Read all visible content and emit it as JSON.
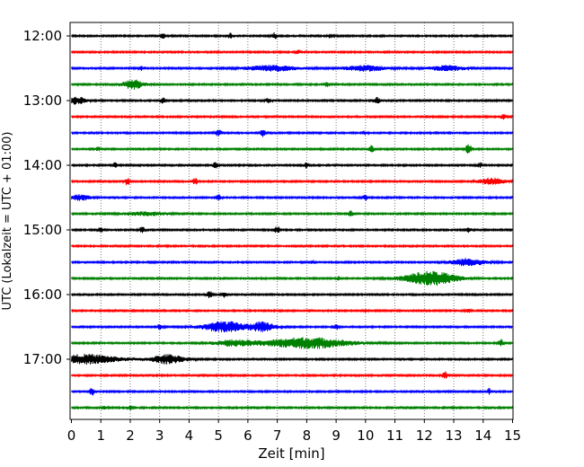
{
  "chart_data": {
    "type": "line",
    "xlabel": "Zeit  [min]",
    "ylabel": "UTC (Lokalzeit = UTC + 01:00)",
    "xlim": [
      0,
      15
    ],
    "x_ticks": [
      "0",
      "1",
      "2",
      "3",
      "4",
      "5",
      "6",
      "7",
      "8",
      "9",
      "10",
      "11",
      "12",
      "13",
      "14",
      "15"
    ],
    "y_ticks": [
      "12:00",
      "13:00",
      "14:00",
      "15:00",
      "16:00",
      "17:00"
    ],
    "grid": "vertical dotted lines at each minute",
    "row_minutes": 15,
    "colors_cycle": [
      "#000000",
      "#ff0000",
      "#0000ff",
      "#008000"
    ],
    "rows": [
      {
        "time": "12:00",
        "color": "#000000",
        "events": [
          {
            "t": 3.1,
            "a": 3
          },
          {
            "t": 5.4,
            "a": 3
          },
          {
            "t": 6.9,
            "a": 3.5
          },
          {
            "t": 8.8,
            "a": 2
          }
        ]
      },
      {
        "time": "12:15",
        "color": "#ff0000",
        "events": [
          {
            "t": 7.7,
            "a": 2
          }
        ]
      },
      {
        "time": "12:30",
        "color": "#0000ff",
        "events": [
          {
            "t": 2.4,
            "a": 2
          },
          {
            "t": 6.8,
            "a": 3,
            "w": 1.2
          },
          {
            "t": 10.0,
            "a": 3,
            "w": 1
          },
          {
            "t": 12.8,
            "a": 3,
            "w": 0.8
          }
        ]
      },
      {
        "time": "12:45",
        "color": "#008000",
        "events": [
          {
            "t": 2.1,
            "a": 5,
            "w": 0.5
          },
          {
            "t": 8.7,
            "a": 2.5
          }
        ]
      },
      {
        "time": "13:00",
        "color": "#000000",
        "events": [
          {
            "t": 0.2,
            "a": 4,
            "w": 0.4
          },
          {
            "t": 3.1,
            "a": 3
          },
          {
            "t": 6.7,
            "a": 3
          },
          {
            "t": 10.4,
            "a": 4
          }
        ]
      },
      {
        "time": "13:15",
        "color": "#ff0000",
        "events": [
          {
            "t": 14.7,
            "a": 3
          }
        ]
      },
      {
        "time": "13:30",
        "color": "#0000ff",
        "events": [
          {
            "t": 5.0,
            "a": 4
          },
          {
            "t": 6.5,
            "a": 4
          },
          {
            "t": 10.0,
            "a": 2
          }
        ]
      },
      {
        "time": "13:45",
        "color": "#008000",
        "events": [
          {
            "t": 0.9,
            "a": 2
          },
          {
            "t": 10.2,
            "a": 4
          },
          {
            "t": 13.5,
            "a": 7
          }
        ]
      },
      {
        "time": "14:00",
        "color": "#000000",
        "events": [
          {
            "t": 1.5,
            "a": 3
          },
          {
            "t": 4.9,
            "a": 3.5
          },
          {
            "t": 8.0,
            "a": 3
          },
          {
            "t": 13.9,
            "a": 2.5
          }
        ]
      },
      {
        "time": "14:15",
        "color": "#ff0000",
        "events": [
          {
            "t": 1.9,
            "a": 4
          },
          {
            "t": 4.2,
            "a": 4
          },
          {
            "t": 14.3,
            "a": 3.5,
            "w": 0.6
          }
        ]
      },
      {
        "time": "14:30",
        "color": "#0000ff",
        "events": [
          {
            "t": 0.3,
            "a": 3,
            "w": 0.5
          },
          {
            "t": 5.0,
            "a": 3
          },
          {
            "t": 10.0,
            "a": 3
          }
        ]
      },
      {
        "time": "14:45",
        "color": "#008000",
        "events": [
          {
            "t": 2.5,
            "a": 2,
            "w": 1
          },
          {
            "t": 9.5,
            "a": 3
          }
        ]
      },
      {
        "time": "15:00",
        "color": "#000000",
        "events": [
          {
            "t": 1.0,
            "a": 3
          },
          {
            "t": 2.4,
            "a": 4
          },
          {
            "t": 7.0,
            "a": 4
          },
          {
            "t": 13.5,
            "a": 2.5
          }
        ]
      },
      {
        "time": "15:15",
        "color": "#ff0000",
        "events": []
      },
      {
        "time": "15:30",
        "color": "#0000ff",
        "events": [
          {
            "t": 8.2,
            "a": 2
          },
          {
            "t": 13.5,
            "a": 4,
            "w": 0.8
          }
        ]
      },
      {
        "time": "15:45",
        "color": "#008000",
        "events": [
          {
            "t": 9.1,
            "a": 2
          },
          {
            "t": 12.2,
            "a": 8,
            "w": 1.2
          }
        ]
      },
      {
        "time": "16:00",
        "color": "#000000",
        "events": [
          {
            "t": 4.7,
            "a": 4
          },
          {
            "t": 5.2,
            "a": 3
          }
        ]
      },
      {
        "time": "16:15",
        "color": "#ff0000",
        "events": [
          {
            "t": 10.0,
            "a": 2
          },
          {
            "t": 13.5,
            "a": 2
          }
        ]
      },
      {
        "time": "16:30",
        "color": "#0000ff",
        "events": [
          {
            "t": 3.0,
            "a": 3
          },
          {
            "t": 5.2,
            "a": 6,
            "w": 1
          },
          {
            "t": 6.5,
            "a": 5,
            "w": 0.6
          },
          {
            "t": 9.0,
            "a": 3
          }
        ]
      },
      {
        "time": "16:45",
        "color": "#008000",
        "events": [
          {
            "t": 5.5,
            "a": 3,
            "w": 1
          },
          {
            "t": 8.0,
            "a": 6,
            "w": 2
          },
          {
            "t": 14.6,
            "a": 4
          }
        ]
      },
      {
        "time": "17:00",
        "color": "#000000",
        "events": [
          {
            "t": 0.5,
            "a": 5,
            "w": 1.6
          },
          {
            "t": 3.3,
            "a": 5,
            "w": 0.8
          }
        ]
      },
      {
        "time": "17:15",
        "color": "#ff0000",
        "events": [
          {
            "t": 12.7,
            "a": 4
          }
        ]
      },
      {
        "time": "17:30",
        "color": "#0000ff",
        "events": [
          {
            "t": 0.7,
            "a": 4
          },
          {
            "t": 14.2,
            "a": 3
          }
        ]
      },
      {
        "time": "17:45",
        "color": "#008000",
        "events": [
          {
            "t": 1.1,
            "a": 2
          },
          {
            "t": 2.0,
            "a": 2
          }
        ]
      }
    ]
  }
}
